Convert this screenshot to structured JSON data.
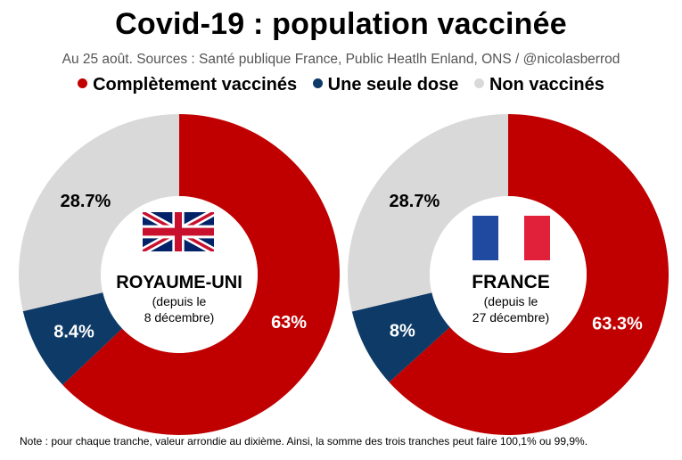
{
  "header": {
    "title": "Covid-19 : population vaccinée",
    "subtitle": "Au 25 août. Sources : Santé publique France, Public Heatlh Enland, ONS / @nicolasberrod"
  },
  "legend": [
    {
      "label": "Complètement vaccinés",
      "color": "#c00000"
    },
    {
      "label": "Une seule dose",
      "color": "#0d3a66"
    },
    {
      "label": "Non vaccinés",
      "color": "#d9d9d9"
    }
  ],
  "chart_data": [
    {
      "type": "pie",
      "donut": true,
      "country": "ROYAUME-UNI",
      "since_line1": "(depuis le",
      "since_line2": "8 décembre)",
      "flag": "uk-flag-icon",
      "slices": [
        {
          "name": "Complètement vaccinés",
          "value": 63.0,
          "label": "63%",
          "color": "#c00000"
        },
        {
          "name": "Une seule dose",
          "value": 8.4,
          "label": "8.4%",
          "color": "#0d3a66"
        },
        {
          "name": "Non vaccinés",
          "value": 28.7,
          "label": "28.7%",
          "color": "#d9d9d9"
        }
      ]
    },
    {
      "type": "pie",
      "donut": true,
      "country": "FRANCE",
      "since_line1": "(depuis le",
      "since_line2": "27 décembre)",
      "flag": "france-flag-icon",
      "slices": [
        {
          "name": "Complètement vaccinés",
          "value": 63.3,
          "label": "63.3%",
          "color": "#c00000"
        },
        {
          "name": "Une seule dose",
          "value": 8.0,
          "label": "8%",
          "color": "#0d3a66"
        },
        {
          "name": "Non vaccinés",
          "value": 28.7,
          "label": "28.7%",
          "color": "#d9d9d9"
        }
      ]
    }
  ],
  "footer": {
    "note": "Note : pour chaque tranche, valeur arrondie au dixième. Ainsi, la somme des trois tranches peut faire 100,1% ou 99,9%."
  }
}
